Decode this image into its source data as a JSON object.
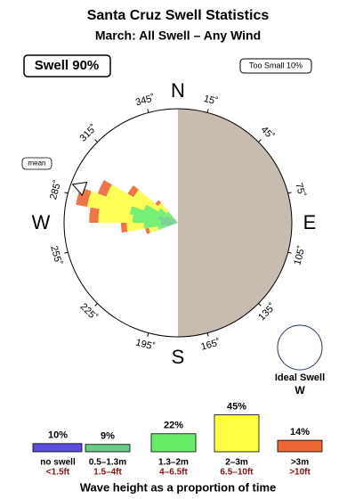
{
  "chart_data": {
    "type": "swell-rose",
    "title": "Santa Cruz Swell Statistics",
    "subtitle": "March: All Swell – Any Wind",
    "swell_badge": "Swell 90%",
    "small_badge": "Too Small 10%",
    "mean_label": "mean",
    "mean_direction": 290,
    "compass": {
      "N": "N",
      "E": "E",
      "S": "S",
      "W": "W"
    },
    "degree_ticks": [
      {
        "value": 15,
        "label": "15˚"
      },
      {
        "value": 45,
        "label": "45˚"
      },
      {
        "value": 75,
        "label": "75˚"
      },
      {
        "value": 105,
        "label": "105˚"
      },
      {
        "value": 135,
        "label": "135˚"
      },
      {
        "value": 165,
        "label": "165˚"
      },
      {
        "value": 195,
        "label": "195˚"
      },
      {
        "value": 225,
        "label": "225˚"
      },
      {
        "value": 255,
        "label": "255˚"
      },
      {
        "value": 285,
        "label": "285˚"
      },
      {
        "value": 315,
        "label": "315˚"
      },
      {
        "value": 345,
        "label": "345˚"
      }
    ],
    "rlim": [
      0,
      100
    ],
    "sectors": [
      {
        "direction": 255,
        "segments": [
          0,
          10,
          8,
          8,
          3
        ]
      },
      {
        "direction": 265,
        "segments": [
          0,
          15,
          15,
          15,
          5
        ]
      },
      {
        "direction": 275,
        "segments": [
          0,
          15,
          25,
          30,
          8
        ]
      },
      {
        "direction": 285,
        "segments": [
          0,
          18,
          25,
          38,
          10
        ]
      },
      {
        "direction": 295,
        "segments": [
          0,
          12,
          20,
          35,
          8
        ]
      },
      {
        "direction": 305,
        "segments": [
          0,
          8,
          12,
          25,
          6
        ]
      },
      {
        "direction": 315,
        "segments": [
          0,
          5,
          8,
          10,
          3
        ]
      }
    ],
    "ideal_label": "Ideal Swell",
    "ideal_direction": "W",
    "legend": {
      "bins": [
        {
          "metric": "no swell",
          "imperial": "<1.5ft",
          "color": "#5a4de0",
          "value": 10,
          "value_label": "10%"
        },
        {
          "metric": "0.5–1.3m",
          "imperial": "1.5–4ft",
          "color": "#66cc88",
          "value": 9,
          "value_label": "9%"
        },
        {
          "metric": "1.3–2m",
          "imperial": "4–6.5ft",
          "color": "#66ee66",
          "value": 22,
          "value_label": "22%"
        },
        {
          "metric": "2–3m",
          "imperial": "6.5–10ft",
          "color": "#ffff44",
          "value": 45,
          "value_label": "45%"
        },
        {
          "metric": ">3m",
          "imperial": ">10ft",
          "color": "#ee6633",
          "value": 14,
          "value_label": "14%"
        }
      ],
      "caption": "Wave height as a proportion of time"
    }
  }
}
